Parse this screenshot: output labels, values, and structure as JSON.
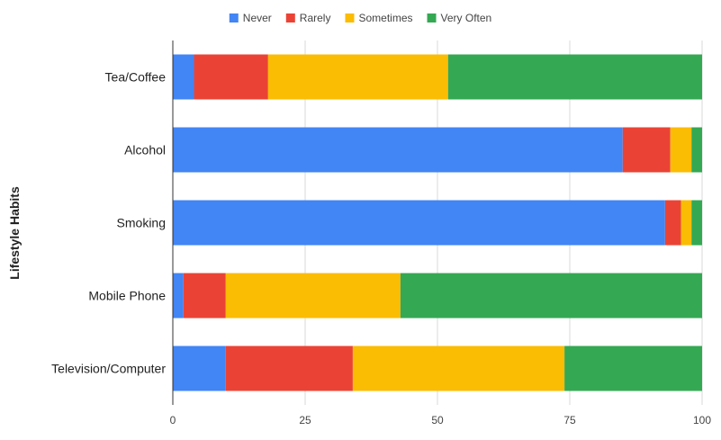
{
  "chart_data": {
    "type": "bar",
    "orientation": "horizontal",
    "stacked": true,
    "title": "",
    "xlabel": "",
    "ylabel": "Lifestyle Habits",
    "xlim": [
      0,
      100
    ],
    "xticks": [
      0,
      25,
      50,
      75,
      100
    ],
    "grid": true,
    "legend_position": "top",
    "categories": [
      "Tea/Coffee",
      "Alcohol",
      "Smoking",
      "Mobile Phone",
      "Television/Computer"
    ],
    "series": [
      {
        "name": "Never",
        "color": "#4285f4",
        "values": [
          4,
          85,
          93,
          2,
          10
        ]
      },
      {
        "name": "Rarely",
        "color": "#ea4335",
        "values": [
          14,
          9,
          3,
          8,
          24
        ]
      },
      {
        "name": "Sometimes",
        "color": "#fbbc04",
        "values": [
          34,
          4,
          2,
          33,
          40
        ]
      },
      {
        "name": "Very Often",
        "color": "#34a853",
        "values": [
          48,
          2,
          2,
          57,
          26
        ]
      }
    ]
  }
}
